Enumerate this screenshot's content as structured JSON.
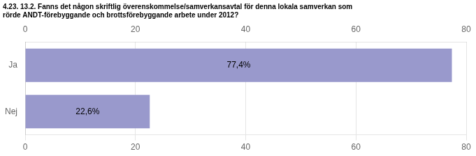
{
  "chart_data": {
    "type": "bar",
    "orientation": "horizontal",
    "title": "4.23. 13.2. Fanns det någon skriftlig överenskommelse/samverkansavtal för denna lokala samverkan som\nrörde ANDT-förebyggande och brottsförebyggande arbete under 2012?",
    "categories": [
      "Ja",
      "Nej"
    ],
    "values": [
      77.4,
      22.6
    ],
    "value_labels": [
      "77,4%",
      "22,6%"
    ],
    "data_labels": true,
    "color": "#9999cc",
    "xlim": [
      0,
      80
    ],
    "xticks": [
      0,
      20,
      40,
      60,
      80
    ],
    "grid": true
  }
}
